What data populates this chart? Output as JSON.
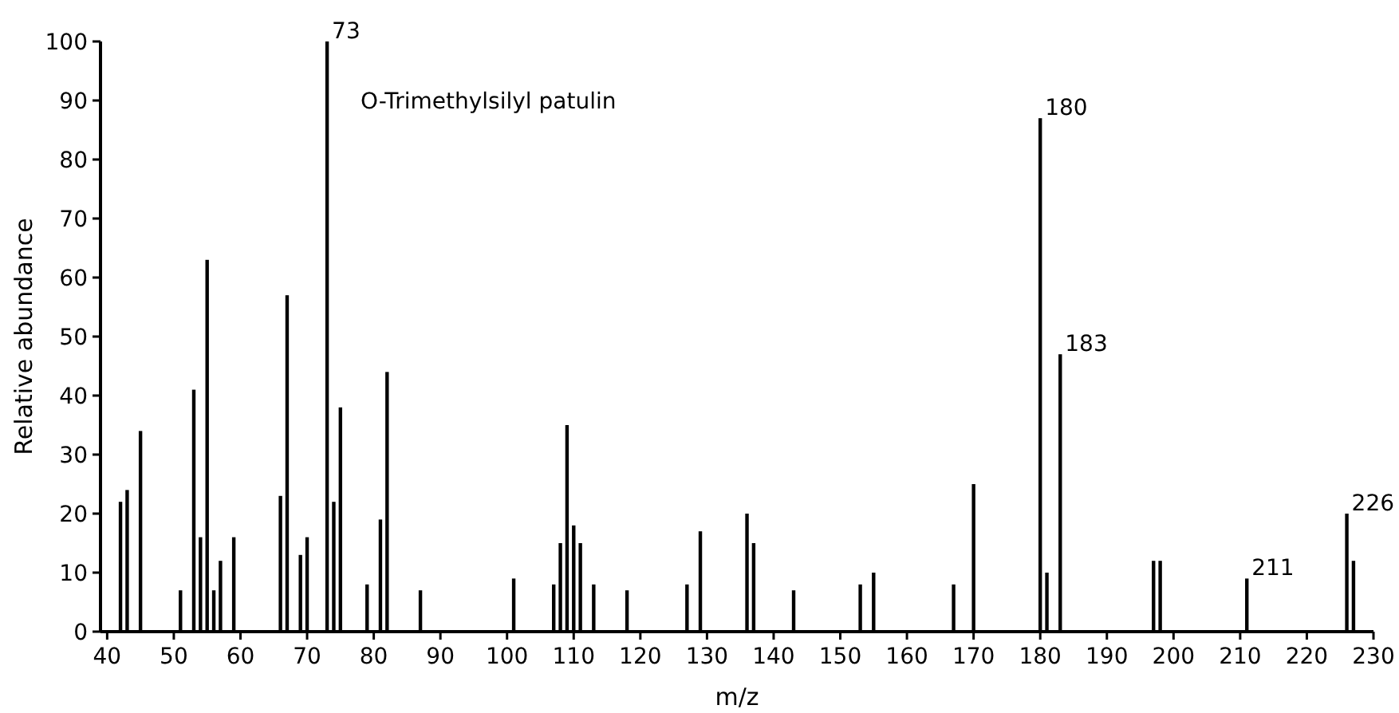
{
  "chart_data": {
    "type": "bar",
    "title": "O-Trimethylsilyl patulin",
    "xlabel": "m/z",
    "ylabel": "Relative abundance",
    "x": [
      42,
      43,
      45,
      51,
      53,
      54,
      55,
      56,
      57,
      59,
      66,
      67,
      69,
      70,
      73,
      74,
      75,
      79,
      81,
      82,
      87,
      101,
      107,
      108,
      109,
      110,
      111,
      113,
      118,
      127,
      129,
      136,
      137,
      143,
      153,
      155,
      167,
      170,
      180,
      181,
      183,
      197,
      198,
      211,
      226,
      227
    ],
    "values": [
      22,
      24,
      34,
      7,
      41,
      16,
      63,
      7,
      12,
      16,
      23,
      57,
      13,
      16,
      100,
      22,
      38,
      8,
      19,
      44,
      7,
      9,
      8,
      15,
      35,
      18,
      15,
      8,
      7,
      8,
      17,
      20,
      15,
      7,
      8,
      10,
      8,
      25,
      87,
      10,
      47,
      12,
      12,
      9,
      20,
      12
    ],
    "color": "#000000",
    "xlim": [
      39,
      230
    ],
    "xticks": [
      40,
      50,
      60,
      70,
      80,
      90,
      100,
      110,
      120,
      130,
      140,
      150,
      160,
      170,
      180,
      190,
      200,
      210,
      220,
      230
    ],
    "ylim": [
      0,
      100
    ],
    "yticks": [
      0,
      10,
      20,
      30,
      40,
      50,
      60,
      70,
      80,
      90,
      100
    ],
    "annotations": [
      {
        "text": "73",
        "x": 73,
        "y": 100
      },
      {
        "text": "180",
        "x": 180,
        "y": 87
      },
      {
        "text": "183",
        "x": 183,
        "y": 47
      },
      {
        "text": "211",
        "x": 211,
        "y": 9
      },
      {
        "text": "226",
        "x": 226,
        "y": 20
      }
    ],
    "grid": false
  }
}
